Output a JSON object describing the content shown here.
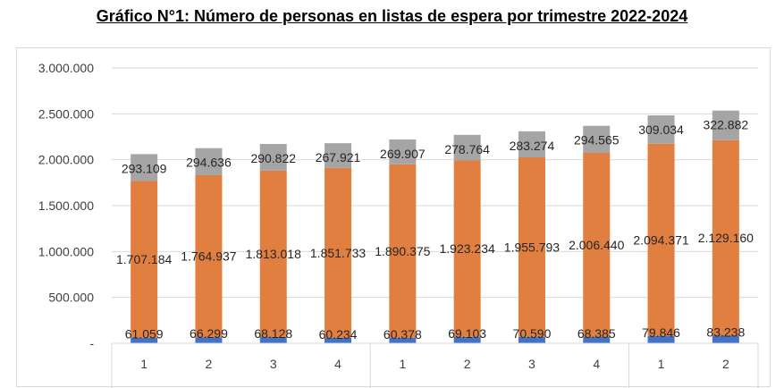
{
  "chart_data": {
    "type": "bar",
    "stacked": true,
    "title": "Gráfico N°1: Número de personas en listas de espera por trimestre 2022-2024",
    "categories": [
      "1",
      "2",
      "3",
      "4",
      "1",
      "2",
      "3",
      "4",
      "1",
      "2"
    ],
    "ylim": [
      0,
      3000000
    ],
    "y_ticks": [
      "-",
      "500.000",
      "1.000.000",
      "1.500.000",
      "2.000.000",
      "2.500.000",
      "3.000.000"
    ],
    "grid": true,
    "series": [
      {
        "color": "#4472c4",
        "values": [
          61059,
          66299,
          68128,
          60234,
          60378,
          69103,
          70590,
          68385,
          79846,
          83238
        ],
        "labels": [
          "61.059",
          "66.299",
          "68.128",
          "60.234",
          "60.378",
          "69.103",
          "70.590",
          "68.385",
          "79.846",
          "83.238"
        ]
      },
      {
        "color": "#e07f3f",
        "values": [
          1707184,
          1764937,
          1813018,
          1851733,
          1890375,
          1923234,
          1955793,
          2006440,
          2094371,
          2129160
        ],
        "labels": [
          "1.707.184",
          "1.764.937",
          "1.813.018",
          "1.851.733",
          "1.890.375",
          "1.923.234",
          "1.955.793",
          "2.006.440",
          "2.094.371",
          "2.129.160"
        ]
      },
      {
        "color": "#a5a5a5",
        "values": [
          293109,
          294636,
          290822,
          267921,
          269907,
          278764,
          283274,
          294565,
          309034,
          322882
        ],
        "labels": [
          "293.109",
          "294.636",
          "290.822",
          "267.921",
          "269.907",
          "278.764",
          "283.274",
          "294.565",
          "309.034",
          "322.882"
        ]
      }
    ]
  }
}
